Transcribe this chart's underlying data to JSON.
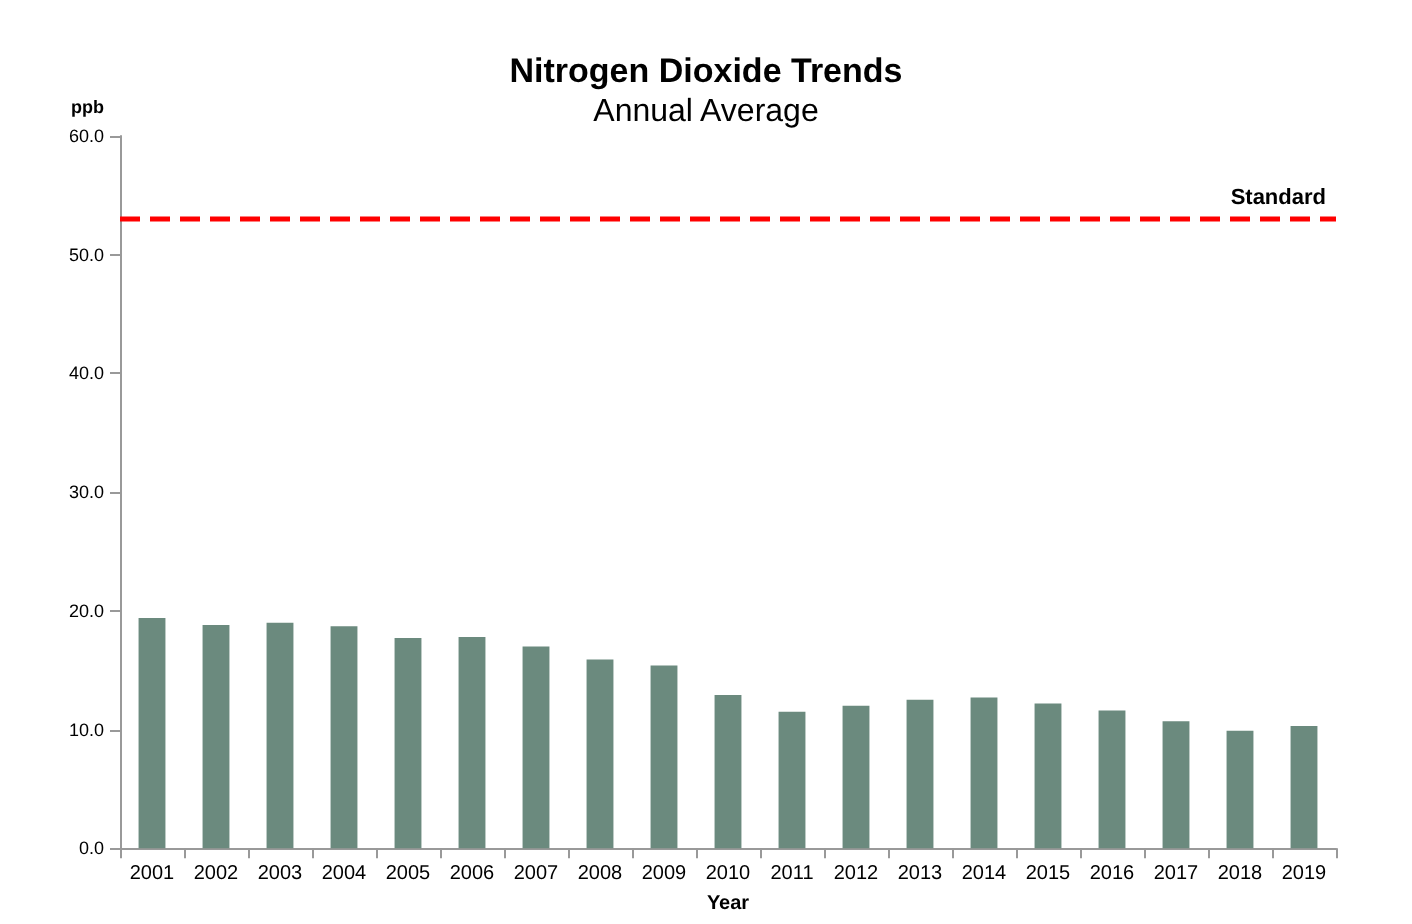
{
  "chart_data": {
    "type": "bar",
    "title": "Nitrogen Dioxide Trends",
    "subtitle": "Annual Average",
    "xlabel": "Year",
    "ylabel": "ppb",
    "categories": [
      "2001",
      "2002",
      "2003",
      "2004",
      "2005",
      "2006",
      "2007",
      "2008",
      "2009",
      "2010",
      "2011",
      "2012",
      "2013",
      "2014",
      "2015",
      "2016",
      "2017",
      "2018",
      "2019"
    ],
    "values": [
      19.4,
      18.8,
      19.0,
      18.7,
      17.7,
      17.8,
      17.0,
      15.9,
      15.4,
      12.9,
      11.5,
      12.0,
      12.5,
      12.7,
      12.2,
      11.6,
      10.7,
      9.9,
      10.3
    ],
    "color": "#6b8a7e",
    "ylim": [
      0,
      60
    ],
    "yticks": [
      {
        "value": 0,
        "label": "0.0"
      },
      {
        "value": 10,
        "label": "10.0"
      },
      {
        "value": 20,
        "label": "20.0"
      },
      {
        "value": 30,
        "label": "30.0"
      },
      {
        "value": 40,
        "label": "40.0"
      },
      {
        "value": 50,
        "label": "50.0"
      },
      {
        "value": 60,
        "label": "60.0"
      }
    ],
    "ref_lines": [
      {
        "axis": "y",
        "value": 53,
        "label": "Standard",
        "color": "#ff0000",
        "line_style": "dashed"
      }
    ],
    "grid": false
  }
}
